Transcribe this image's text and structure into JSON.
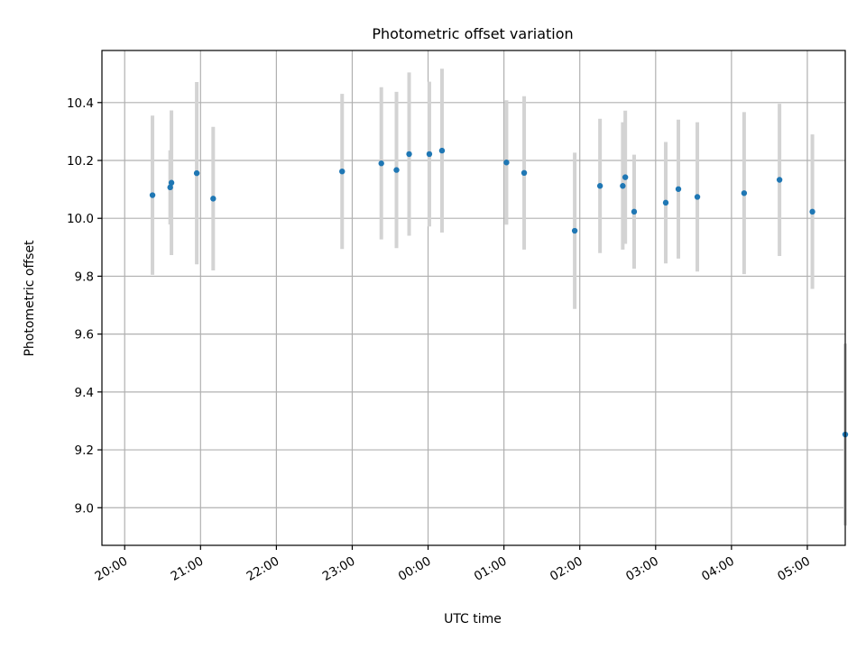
{
  "chart_data": {
    "type": "scatter",
    "title": "Photometric offset variation",
    "xlabel": "UTC time",
    "ylabel": "Photometric offset",
    "x_tick_labels": [
      "20:00",
      "21:00",
      "22:00",
      "23:00",
      "00:00",
      "01:00",
      "02:00",
      "03:00",
      "04:00",
      "05:00"
    ],
    "y_tick_labels": [
      "9.0",
      "9.2",
      "9.4",
      "9.6",
      "9.8",
      "10.0",
      "10.2",
      "10.4"
    ],
    "x_ticks": [
      "20:00",
      "21:00",
      "22:00",
      "23:00",
      "00:00",
      "01:00",
      "02:00",
      "03:00",
      "04:00",
      "05:00"
    ],
    "y_ticks": [
      9.0,
      9.2,
      9.4,
      9.6,
      9.8,
      10.0,
      10.2,
      10.4
    ],
    "xlim": [
      "19:42",
      "05:30"
    ],
    "ylim": [
      8.87,
      10.58
    ],
    "grid": true,
    "point_color": "#1f77b4",
    "errorbar_color": "#d3d3d3",
    "series": [
      {
        "x": [
          "20:22",
          "20:36",
          "20:37",
          "20:57",
          "21:10",
          "22:52",
          "23:23",
          "23:35",
          "23:45",
          "24:01",
          "24:11",
          "25:02",
          "25:16",
          "25:56",
          "26:16",
          "26:34",
          "26:36",
          "26:43",
          "27:08",
          "27:18",
          "27:33",
          "28:10",
          "28:38",
          "29:04",
          "29:30"
        ],
        "y": [
          10.08,
          10.107,
          10.123,
          10.156,
          10.068,
          10.162,
          10.19,
          10.167,
          10.222,
          10.222,
          10.234,
          10.193,
          10.157,
          9.957,
          10.112,
          10.112,
          10.142,
          10.023,
          10.054,
          10.101,
          10.074,
          10.087,
          10.133,
          10.023,
          9.253
        ],
        "yerr": [
          0.275,
          0.128,
          0.25,
          0.315,
          0.248,
          0.268,
          0.263,
          0.27,
          0.282,
          0.25,
          0.283,
          0.215,
          0.265,
          0.27,
          0.232,
          0.22,
          0.23,
          0.197,
          0.21,
          0.24,
          0.258,
          0.28,
          0.263,
          0.267,
          0.314
        ]
      }
    ]
  }
}
